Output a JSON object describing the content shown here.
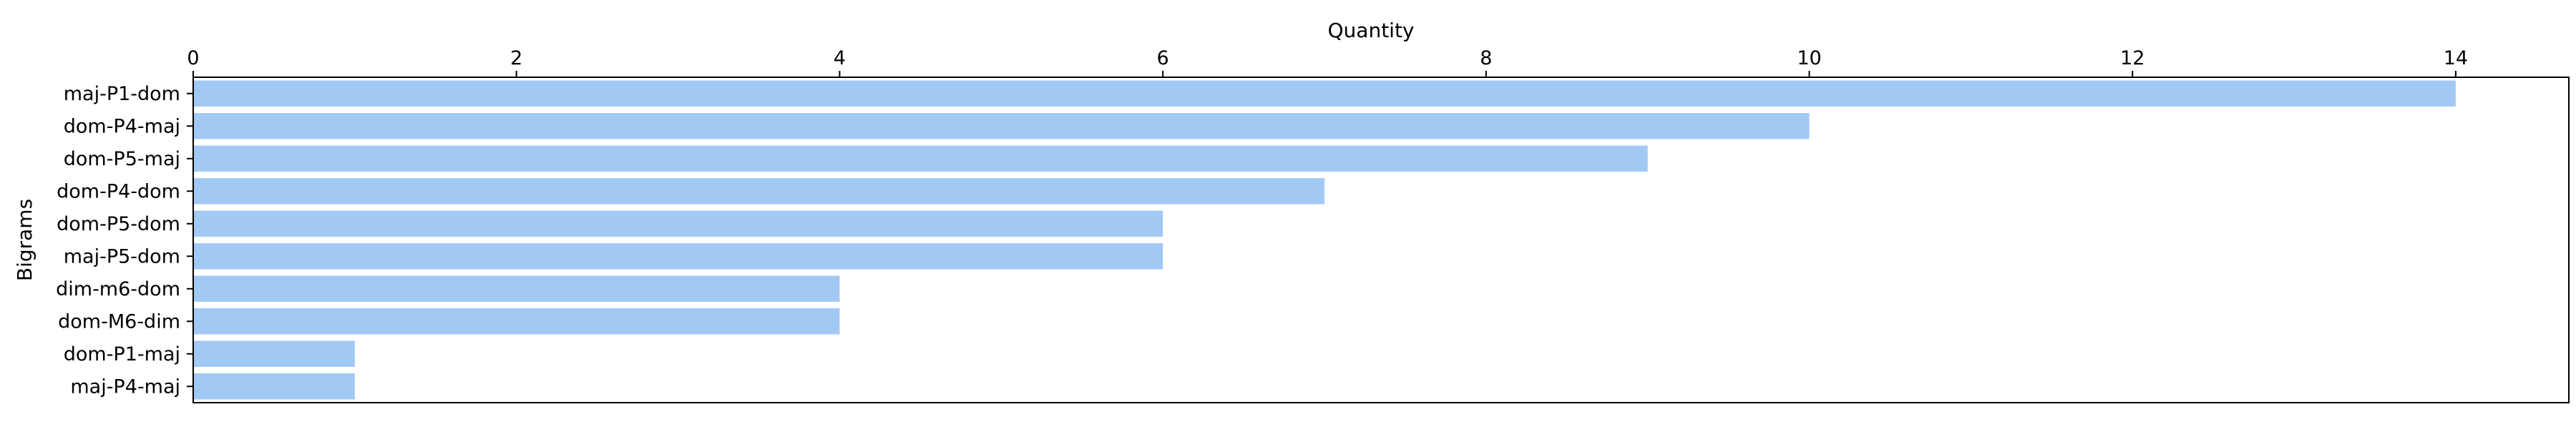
{
  "chart_data": {
    "type": "bar",
    "orientation": "horizontal",
    "xlabel": "Quantity",
    "ylabel": "Bigrams",
    "x_axis_position": "top",
    "xlim": [
      0,
      14.7
    ],
    "xticks": [
      0,
      2,
      4,
      6,
      8,
      10,
      12,
      14
    ],
    "grid": false,
    "legend": "none",
    "bar_color": "#a1c9f4",
    "categories": [
      "maj-P1-dom",
      "dom-P4-maj",
      "dom-P5-maj",
      "dom-P4-dom",
      "dom-P5-dom",
      "maj-P5-dom",
      "dim-m6-dom",
      "dom-M6-dim",
      "dom-P1-maj",
      "maj-P4-maj"
    ],
    "values": [
      14,
      10,
      9,
      7,
      6,
      6,
      4,
      4,
      1,
      1
    ]
  }
}
